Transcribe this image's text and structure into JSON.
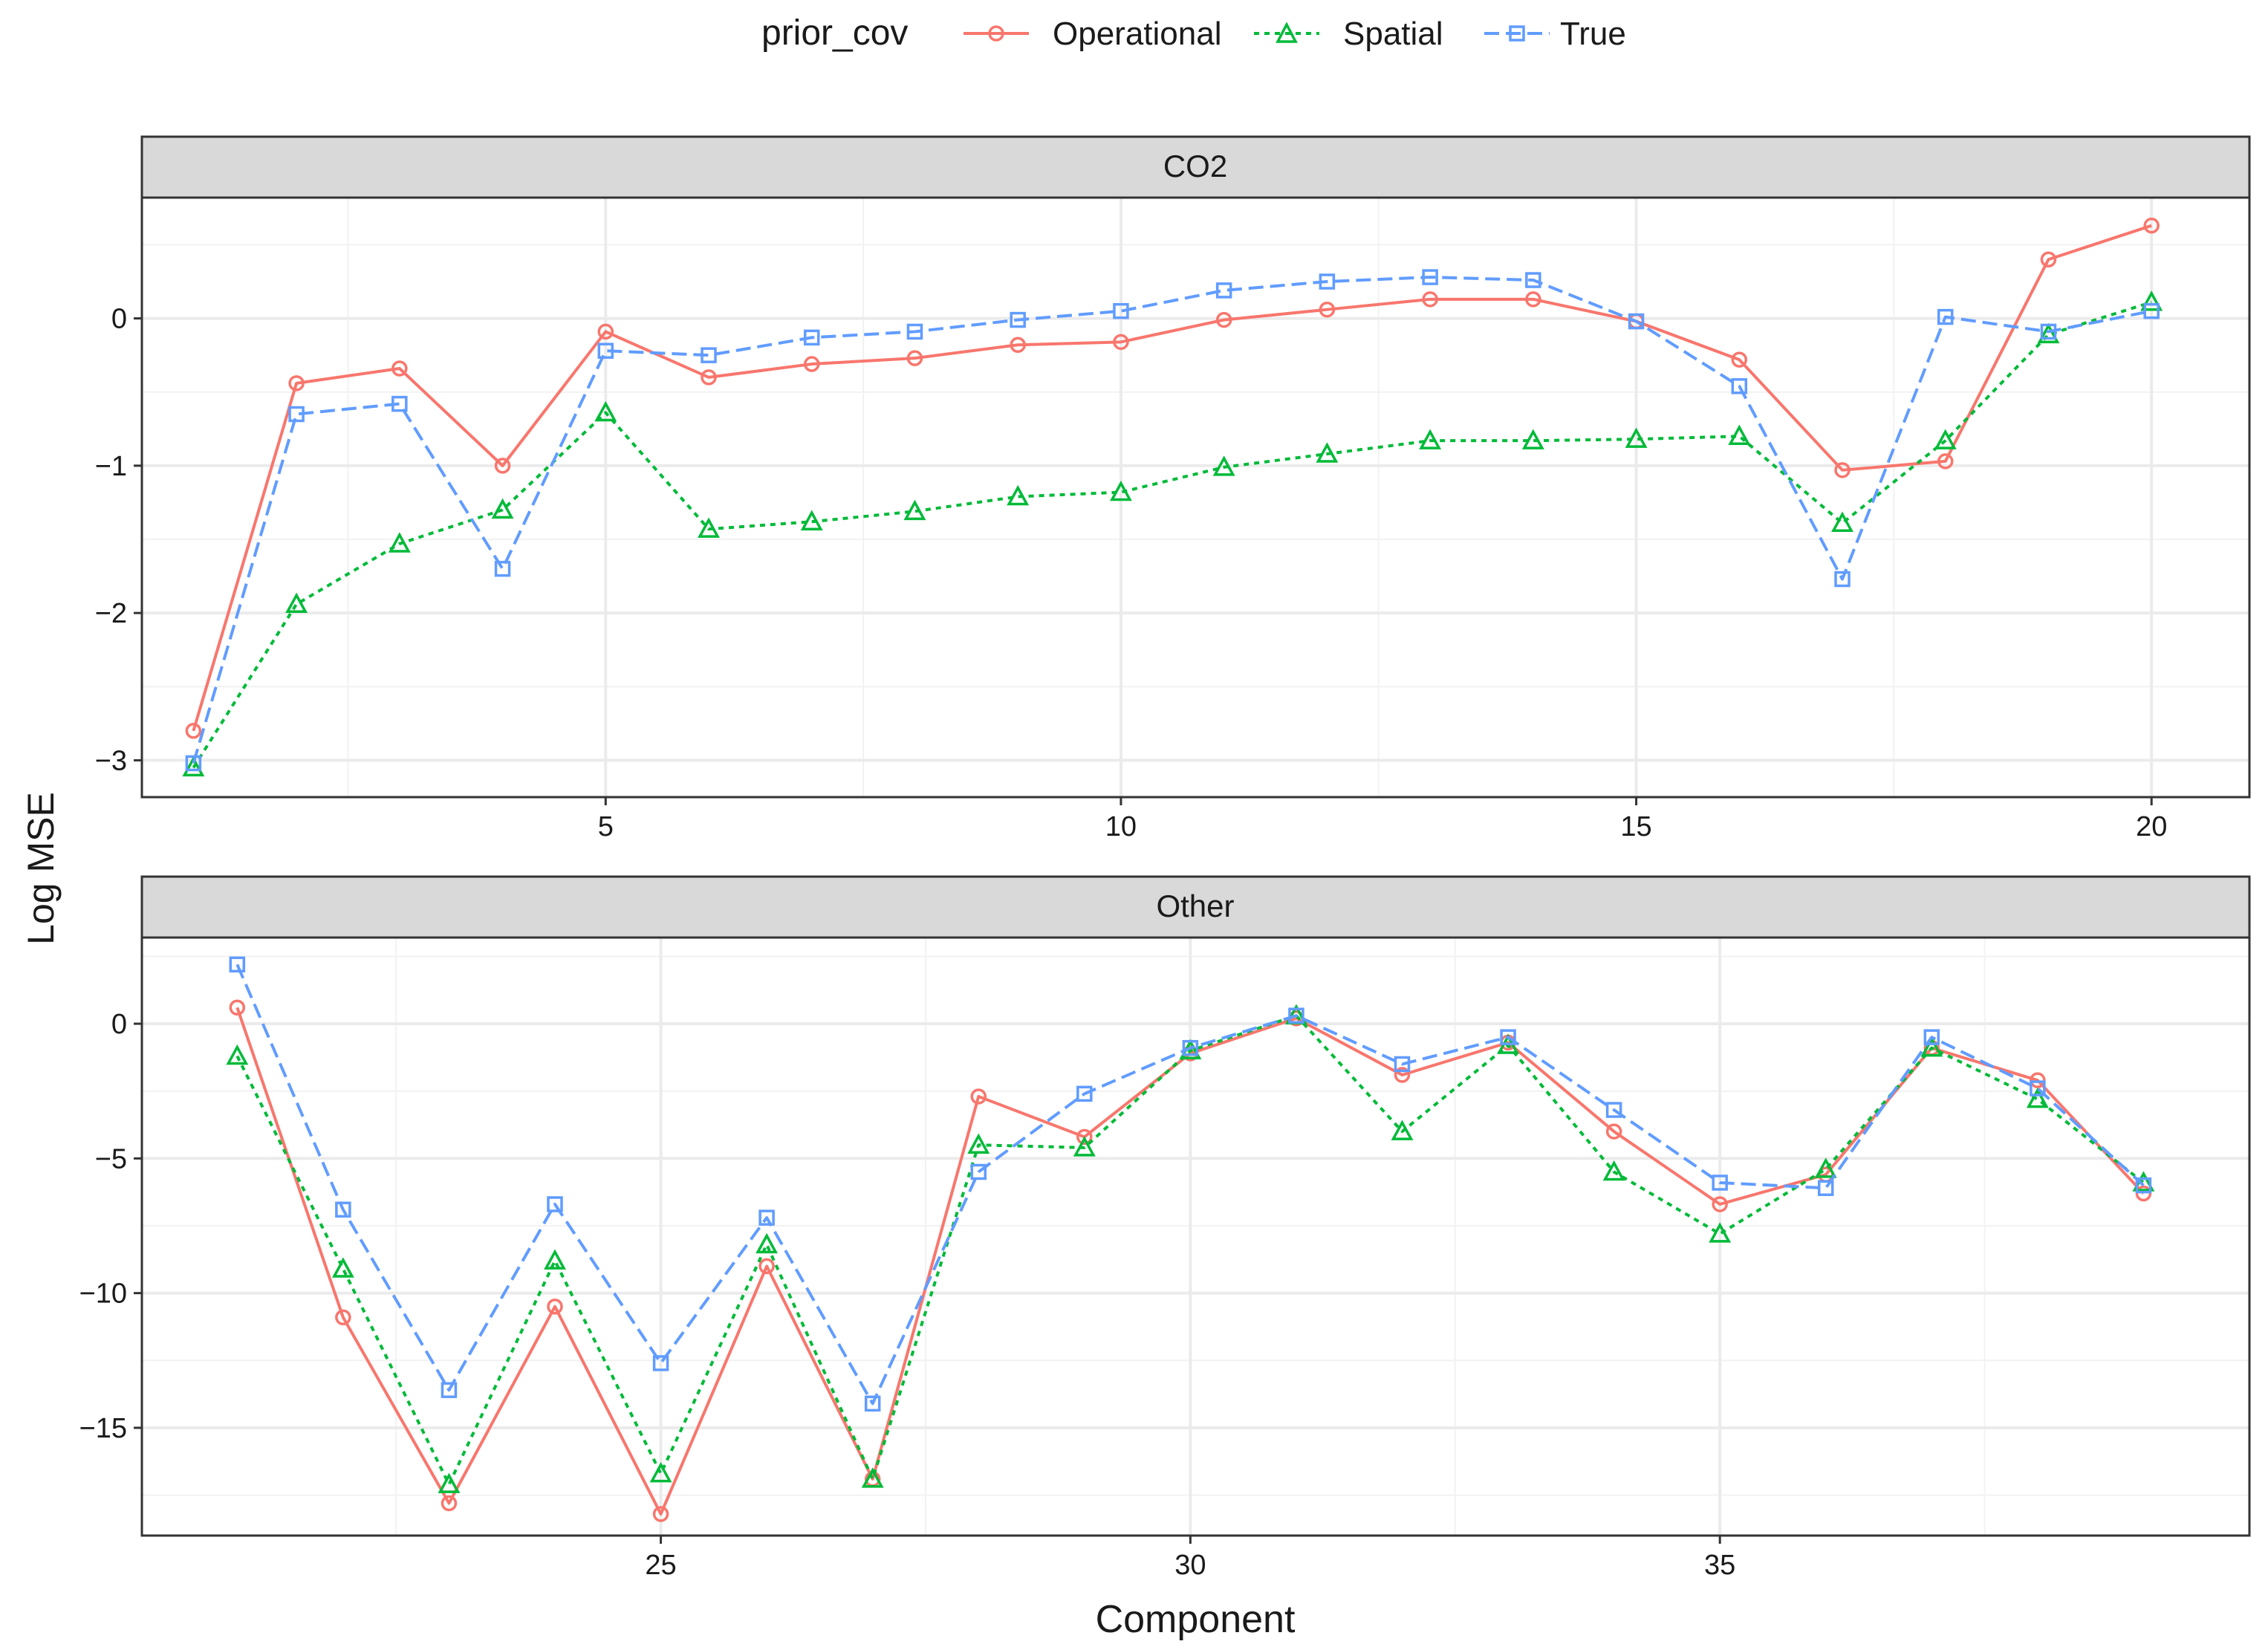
{
  "chart_data": {
    "type": "line",
    "ylabel": "Log MSE",
    "xlabel": "Component",
    "legend": {
      "title": "prior_cov",
      "position": "top",
      "entries": [
        "Operational",
        "Spatial",
        "True"
      ]
    },
    "colors": {
      "Operational": "#F8766D",
      "Spatial": "#00BA38",
      "True": "#619CFF"
    },
    "grid": true,
    "panels": [
      {
        "title": "CO2",
        "xlim": [
          0.5,
          20.95
        ],
        "ylim": [
          -3.25,
          0.82
        ],
        "xticks": [
          5,
          10,
          15,
          20
        ],
        "yticks": [
          -3,
          -2,
          -1,
          0
        ],
        "series": [
          {
            "name": "Operational",
            "x": [
              1,
              2,
              3,
              4,
              5,
              6,
              7,
              8,
              9,
              10,
              11,
              12,
              13,
              14,
              15,
              16,
              17,
              18,
              19,
              20
            ],
            "values": [
              -2.8,
              -0.44,
              -0.34,
              -1.0,
              -0.09,
              -0.4,
              -0.31,
              -0.27,
              -0.18,
              -0.16,
              -0.01,
              0.06,
              0.13,
              0.13,
              -0.02,
              -0.28,
              -1.03,
              -0.97,
              0.4,
              0.63
            ]
          },
          {
            "name": "Spatial",
            "x": [
              1,
              2,
              3,
              4,
              5,
              6,
              7,
              8,
              9,
              10,
              11,
              12,
              13,
              14,
              15,
              16,
              17,
              18,
              19,
              20
            ],
            "values": [
              -3.05,
              -1.94,
              -1.53,
              -1.3,
              -0.64,
              -1.43,
              -1.38,
              -1.31,
              -1.21,
              -1.18,
              -1.01,
              -0.92,
              -0.83,
              -0.83,
              -0.82,
              -0.8,
              -1.39,
              -0.83,
              -0.11,
              0.11
            ]
          },
          {
            "name": "True",
            "x": [
              1,
              2,
              3,
              4,
              5,
              6,
              7,
              8,
              9,
              10,
              11,
              12,
              13,
              14,
              15,
              16,
              17,
              18,
              19,
              20
            ],
            "values": [
              -3.02,
              -0.65,
              -0.58,
              -1.7,
              -0.22,
              -0.25,
              -0.13,
              -0.09,
              -0.01,
              0.05,
              0.19,
              0.25,
              0.28,
              0.26,
              -0.02,
              -0.46,
              -1.77,
              0.01,
              -0.09,
              0.05
            ]
          }
        ]
      },
      {
        "title": "Other",
        "xlim": [
          20.1,
          40.0
        ],
        "ylim": [
          -19.0,
          3.2
        ],
        "xticks": [
          25,
          30,
          35
        ],
        "yticks": [
          -15,
          -10,
          -5,
          0
        ],
        "series": [
          {
            "name": "Operational",
            "x": [
              21,
              22,
              23,
              24,
              25,
              26,
              27,
              28,
              29,
              30,
              31,
              32,
              33,
              34,
              35,
              36,
              37,
              38,
              39
            ],
            "values": [
              0.6,
              -10.9,
              -17.8,
              -10.5,
              -18.2,
              -9.0,
              -16.9,
              -2.7,
              -4.2,
              -1.1,
              0.2,
              -1.9,
              -0.7,
              -4.0,
              -6.7,
              -5.6,
              -0.9,
              -2.1,
              -6.3
            ]
          },
          {
            "name": "Spatial",
            "x": [
              21,
              22,
              23,
              24,
              25,
              26,
              27,
              28,
              29,
              30,
              31,
              32,
              33,
              34,
              35,
              36,
              37,
              38,
              39
            ],
            "values": [
              -1.2,
              -9.1,
              -17.1,
              -8.8,
              -16.7,
              -8.2,
              -16.9,
              -4.5,
              -4.6,
              -1.0,
              0.3,
              -4.0,
              -0.8,
              -5.5,
              -7.8,
              -5.4,
              -0.9,
              -2.8,
              -5.9
            ]
          },
          {
            "name": "True",
            "x": [
              21,
              22,
              23,
              24,
              25,
              26,
              27,
              28,
              29,
              30,
              31,
              32,
              33,
              34,
              35,
              36,
              37,
              38,
              39
            ],
            "values": [
              2.2,
              -6.9,
              -13.6,
              -6.7,
              -12.6,
              -7.2,
              -14.1,
              -5.5,
              -2.6,
              -0.9,
              0.3,
              -1.5,
              -0.5,
              -3.2,
              -5.9,
              -6.1,
              -0.5,
              -2.4,
              -6.0
            ]
          }
        ]
      }
    ]
  }
}
